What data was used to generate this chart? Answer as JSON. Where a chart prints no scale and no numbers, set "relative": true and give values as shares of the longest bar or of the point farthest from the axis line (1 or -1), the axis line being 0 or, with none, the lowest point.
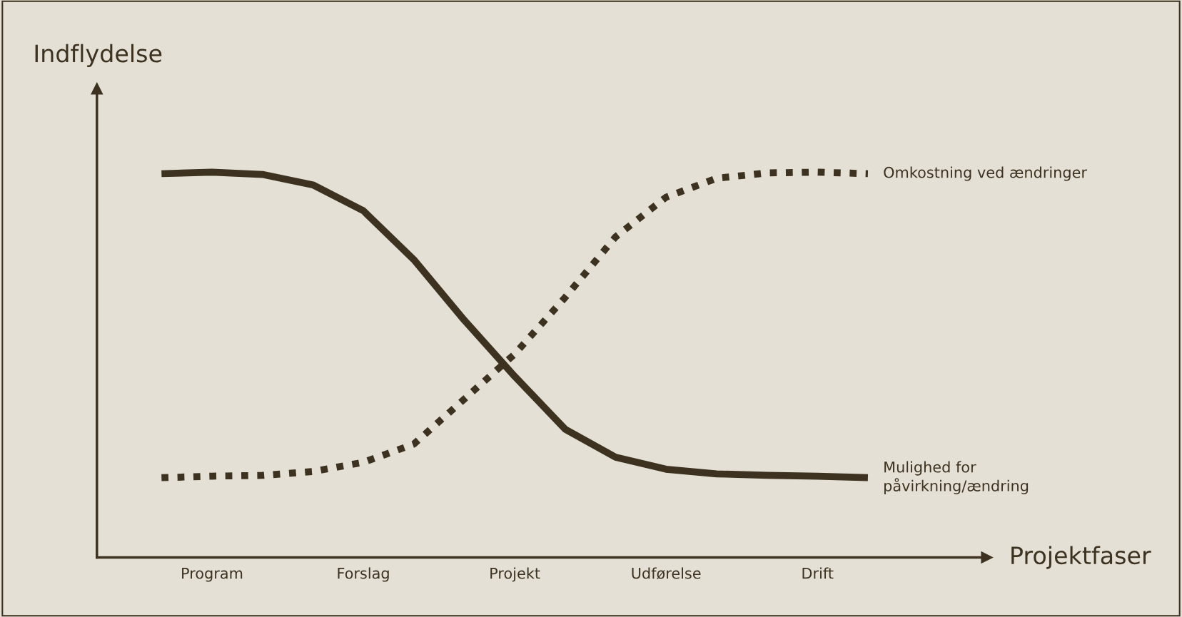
{
  "chart_data": {
    "type": "line",
    "relative": true,
    "xlabel": "Projektfaser",
    "ylabel": "Indflydelse",
    "categories": [
      null,
      "Program",
      null,
      null,
      "Forslag",
      null,
      null,
      "Projekt",
      null,
      null,
      "Udførelse",
      null,
      null,
      "Drift",
      null
    ],
    "series": [
      {
        "name": "Mulighed for\npåvirkning/ændring",
        "color": "#3d3220",
        "line_style": "solid",
        "values": [
          0.996,
          1.0,
          0.994,
          0.967,
          0.9,
          0.773,
          0.616,
          0.47,
          0.333,
          0.26,
          0.229,
          0.217,
          0.213,
          0.211,
          0.207
        ]
      },
      {
        "name": "Omkostning ved ændringer",
        "color": "#3d3220",
        "line_style": "dotted",
        "values": [
          0.207,
          0.211,
          0.213,
          0.223,
          0.247,
          0.294,
          0.411,
          0.528,
          0.675,
          0.832,
          0.935,
          0.984,
          0.998,
          1.0,
          0.996
        ]
      }
    ]
  }
}
